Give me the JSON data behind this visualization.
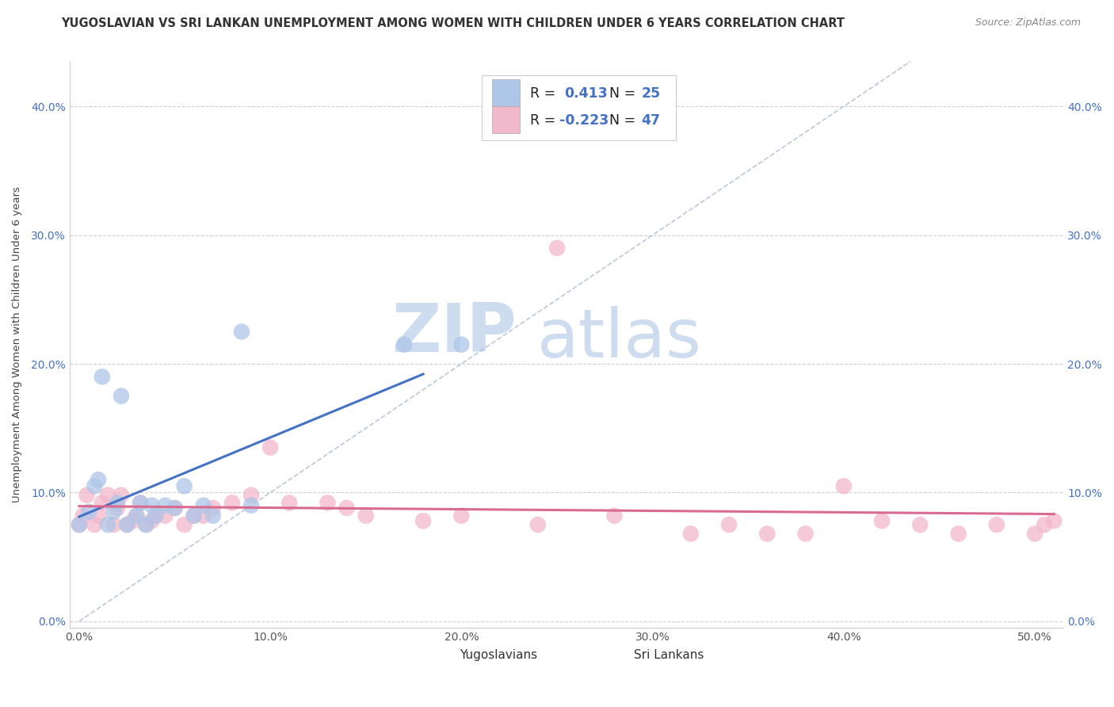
{
  "title": "YUGOSLAVIAN VS SRI LANKAN UNEMPLOYMENT AMONG WOMEN WITH CHILDREN UNDER 6 YEARS CORRELATION CHART",
  "source": "Source: ZipAtlas.com",
  "ylabel": "Unemployment Among Women with Children Under 6 years",
  "xlabel_vals": [
    0.0,
    0.1,
    0.2,
    0.3,
    0.4,
    0.5
  ],
  "ylabel_vals": [
    0.0,
    0.1,
    0.2,
    0.3,
    0.4
  ],
  "xlim": [
    -0.005,
    0.515
  ],
  "ylim": [
    -0.005,
    0.435
  ],
  "legend_r1": "0.413",
  "legend_n1": "25",
  "legend_r2": "-0.223",
  "legend_n2": "47",
  "blue_color": "#4472c4",
  "pink_color": "#d96b8f",
  "blue_fill": "#aec6e8",
  "pink_fill": "#f2b8cb",
  "watermark_zip_color": "#cddcee",
  "watermark_atlas_color": "#cddcee",
  "grid_color": "#d0d0d0",
  "bg_color": "#ffffff",
  "title_color": "#333333",
  "source_color": "#888888",
  "tick_color_y": "#4472c4",
  "tick_color_x": "#555555",
  "yugoslavian_x": [
    0.0,
    0.005,
    0.008,
    0.01,
    0.012,
    0.015,
    0.018,
    0.02,
    0.022,
    0.025,
    0.03,
    0.032,
    0.035,
    0.038,
    0.04,
    0.045,
    0.05,
    0.055,
    0.06,
    0.065,
    0.07,
    0.085,
    0.09,
    0.17,
    0.2
  ],
  "yugoslavian_y": [
    0.075,
    0.085,
    0.105,
    0.11,
    0.19,
    0.075,
    0.085,
    0.092,
    0.175,
    0.075,
    0.082,
    0.092,
    0.075,
    0.09,
    0.082,
    0.09,
    0.088,
    0.105,
    0.082,
    0.09,
    0.082,
    0.225,
    0.09,
    0.215,
    0.215
  ],
  "srilankans_x": [
    0.0,
    0.002,
    0.004,
    0.008,
    0.01,
    0.012,
    0.015,
    0.018,
    0.02,
    0.022,
    0.025,
    0.028,
    0.03,
    0.032,
    0.035,
    0.038,
    0.04,
    0.045,
    0.05,
    0.055,
    0.06,
    0.065,
    0.07,
    0.08,
    0.09,
    0.1,
    0.11,
    0.13,
    0.14,
    0.15,
    0.18,
    0.2,
    0.24,
    0.25,
    0.28,
    0.32,
    0.34,
    0.36,
    0.38,
    0.4,
    0.42,
    0.44,
    0.46,
    0.48,
    0.5,
    0.505,
    0.51
  ],
  "srilankans_y": [
    0.075,
    0.082,
    0.098,
    0.075,
    0.082,
    0.092,
    0.098,
    0.075,
    0.088,
    0.098,
    0.075,
    0.078,
    0.082,
    0.092,
    0.075,
    0.078,
    0.082,
    0.082,
    0.088,
    0.075,
    0.082,
    0.082,
    0.088,
    0.092,
    0.098,
    0.135,
    0.092,
    0.092,
    0.088,
    0.082,
    0.078,
    0.082,
    0.075,
    0.29,
    0.082,
    0.068,
    0.075,
    0.068,
    0.068,
    0.105,
    0.078,
    0.075,
    0.068,
    0.075,
    0.068,
    0.075,
    0.078
  ],
  "title_fontsize": 10.5,
  "axis_label_fontsize": 9.5,
  "tick_fontsize": 10
}
